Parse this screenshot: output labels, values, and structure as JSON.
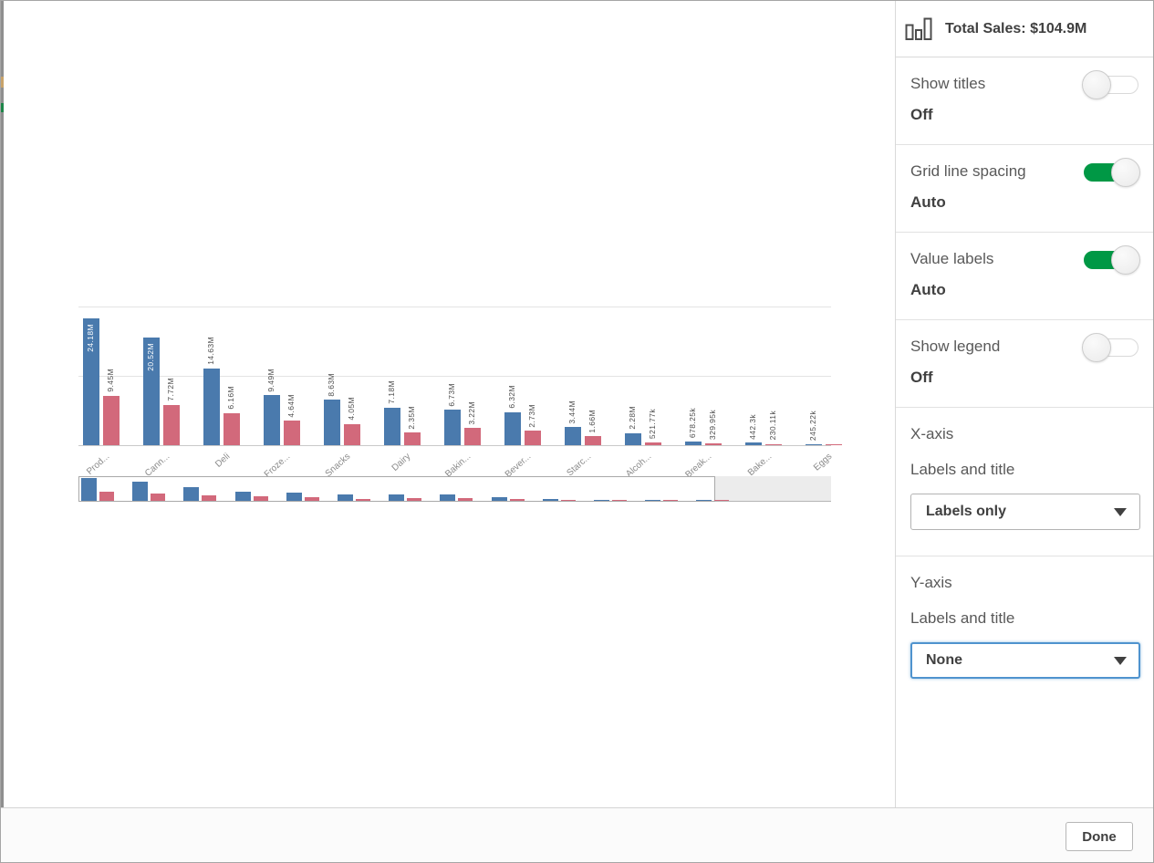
{
  "panel": {
    "header": {
      "title": "Total Sales: $104.9M",
      "icon": "bar-chart-icon"
    },
    "settings": [
      {
        "label": "Show titles",
        "value": "Off",
        "state": "off"
      },
      {
        "label": "Grid line spacing",
        "value": "Auto",
        "state": "on"
      },
      {
        "label": "Value labels",
        "value": "Auto",
        "state": "on"
      },
      {
        "label": "Show legend",
        "value": "Off",
        "state": "off"
      }
    ],
    "axis_sections": [
      {
        "title": "X-axis",
        "sublabel": "Labels and title",
        "dropdown_value": "Labels only"
      },
      {
        "title": "Y-axis",
        "sublabel": "Labels and title",
        "dropdown_value": "None"
      }
    ]
  },
  "footer": {
    "done_label": "Done"
  },
  "colors": {
    "bar_blue": "#4a7aad",
    "bar_red": "#d2697b",
    "toggle_green": "#009845",
    "focus_blue": "#4f93ce",
    "edge_orange": "#c8a36a",
    "edge_green": "#1d8649"
  },
  "chart_data": {
    "type": "bar",
    "title": "Total Sales: $104.9M",
    "xlabel": "",
    "ylabel": "",
    "ylim": [
      0,
      26.5
    ],
    "grid": "auto (2 horizontal gridlines, unlabeled)",
    "legend_position": "hidden",
    "x_axis_mode": "labels only",
    "y_axis_mode": "none",
    "value_unit": "M = millions, k = thousands",
    "categories": [
      "Prod...",
      "Cann...",
      "Deli",
      "Froze...",
      "Snacks",
      "Dairy",
      "Bakin...",
      "Bever...",
      "Starc...",
      "Alcoh...",
      "Break...",
      "Bake...",
      "Eggs"
    ],
    "series": [
      {
        "name": "Total Sales",
        "color": "#4a7aad",
        "values": [
          24.18,
          20.52,
          14.63,
          9.49,
          8.63,
          7.18,
          6.73,
          6.32,
          3.44,
          2.28,
          0.67825,
          0.4423,
          0.24522
        ],
        "labels": [
          "24.18M",
          "20.52M",
          "14.63M",
          "9.49M",
          "8.63M",
          "7.18M",
          "6.73M",
          "6.32M",
          "3.44M",
          "2.28M",
          "678.25k",
          "442.3k",
          "245.22k"
        ]
      },
      {
        "name": "",
        "color": "#d2697b",
        "values": [
          9.45,
          7.72,
          6.16,
          4.64,
          4.05,
          2.35,
          3.22,
          2.73,
          1.66,
          0.52177,
          0.32995,
          0.23011,
          0.08
        ],
        "labels": [
          "9.45M",
          "7.72M",
          "6.16M",
          "4.64M",
          "4.05M",
          "2.35M",
          "3.22M",
          "2.73M",
          "1.66M",
          "521.77k",
          "329.95k",
          "230.11k",
          ""
        ]
      }
    ]
  }
}
